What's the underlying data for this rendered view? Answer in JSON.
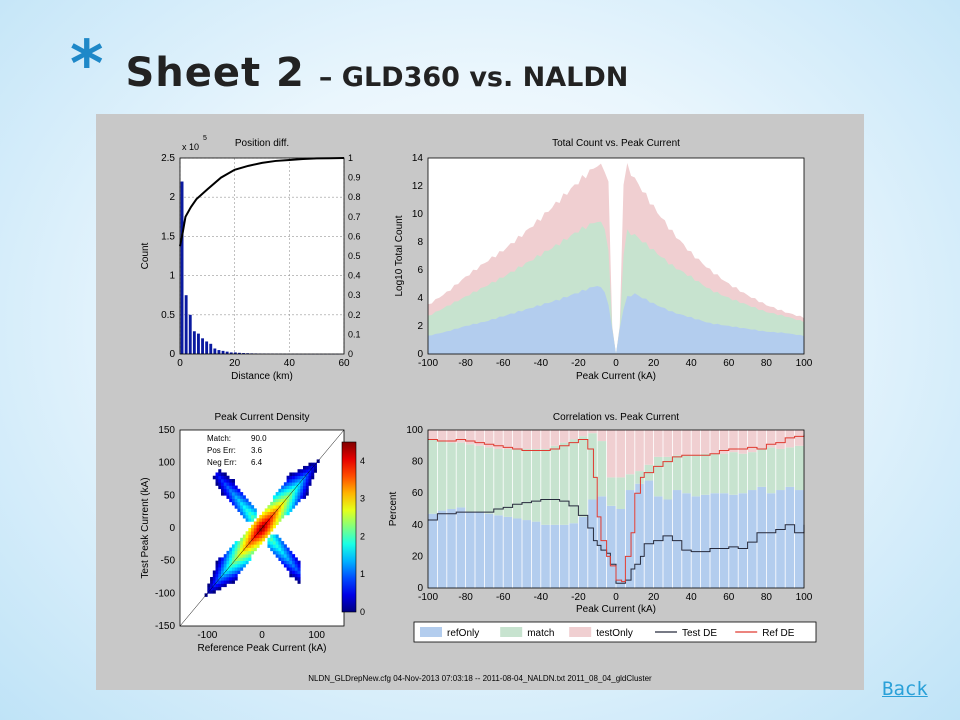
{
  "slide": {
    "bullet": "*",
    "title_main": "Sheet 2",
    "title_sub": "– GLD360 vs. NALDN",
    "back_link": "Back",
    "footer": "NLDN_GLDrepNew.cfg       04-Nov-2013 07:03:18  --  2011-08-04_NALDN.txt       2011_08_04_gldCluster"
  },
  "colors": {
    "bar_blue": "#0a1aa0",
    "cdf_line": "#000000",
    "refOnly": "#b3cdee",
    "match": "#c7e3cf",
    "testOnly": "#f0cfd1",
    "test_de": "#262a3c",
    "ref_de": "#e03a30"
  },
  "chart_data": [
    {
      "id": "position_diff",
      "type": "bar",
      "title": "Position diff.",
      "xlabel": "Distance (km)",
      "ylabel": "Count",
      "y_multiplier_label": "x 10",
      "y_multiplier_exp": "5",
      "xlim": [
        0,
        60
      ],
      "ylim": [
        0,
        2.5
      ],
      "y2lim": [
        0,
        1
      ],
      "xticks": [
        0,
        20,
        40,
        60
      ],
      "yticks": [
        0,
        0.5,
        1,
        1.5,
        2,
        2.5
      ],
      "y2ticks": [
        0,
        0.1,
        0.2,
        0.3,
        0.4,
        0.5,
        0.6,
        0.7,
        0.8,
        0.9,
        1
      ],
      "grid": true,
      "bars": {
        "x": [
          0.75,
          2.25,
          3.75,
          5.25,
          6.75,
          8.25,
          9.75,
          11.25,
          12.75,
          14.25,
          15.75,
          17.25,
          18.75,
          20.25,
          21.75,
          23.25,
          24.75,
          26.25,
          27.75,
          29.25,
          30.75,
          32.25,
          33.75,
          35.25,
          36.75,
          38.25,
          39.75,
          41.25,
          42.75,
          44.25,
          45.75,
          47.25,
          48.75,
          50.25,
          51.75,
          53.25,
          54.75,
          56.25,
          57.75
        ],
        "values": [
          2.2,
          0.75,
          0.5,
          0.29,
          0.26,
          0.2,
          0.16,
          0.13,
          0.07,
          0.05,
          0.04,
          0.03,
          0.02,
          0.02,
          0.015,
          0.012,
          0.01,
          0.008,
          0.007,
          0.006,
          0.005,
          0.004,
          0.004,
          0.003,
          0.003,
          0.002,
          0.002,
          0.002,
          0.002,
          0.001,
          0.001,
          0.001,
          0.001,
          0.001,
          0.001,
          0.001,
          0.001,
          0.001,
          0.001
        ]
      },
      "cdf": {
        "x": [
          0,
          1,
          2,
          4,
          6,
          10,
          15,
          20,
          25,
          30,
          35,
          40,
          45,
          50,
          55,
          60
        ],
        "y": [
          0.55,
          0.62,
          0.7,
          0.75,
          0.79,
          0.84,
          0.9,
          0.94,
          0.96,
          0.975,
          0.985,
          0.99,
          0.995,
          0.998,
          0.999,
          1.0
        ]
      }
    },
    {
      "id": "total_count",
      "type": "area",
      "title": "Total Count vs. Peak Current",
      "xlabel": "Peak Current (kA)",
      "ylabel": "Log10 Total Count",
      "xlim": [
        -100,
        100
      ],
      "ylim": [
        0,
        14
      ],
      "xticks": [
        -100,
        -80,
        -60,
        -40,
        -20,
        0,
        20,
        40,
        60,
        80,
        100
      ],
      "yticks": [
        0,
        2,
        4,
        6,
        8,
        10,
        12,
        14
      ],
      "grid": false,
      "x": [
        -100,
        -90,
        -80,
        -70,
        -60,
        -50,
        -40,
        -30,
        -20,
        -10,
        -5,
        -3,
        -2,
        0,
        2,
        3,
        5,
        10,
        20,
        30,
        40,
        50,
        60,
        70,
        80,
        90,
        100
      ],
      "series": [
        {
          "name": "refOnly",
          "values": [
            1.3,
            1.6,
            2.0,
            2.3,
            2.7,
            3.1,
            3.5,
            3.9,
            4.4,
            4.9,
            4.4,
            2.5,
            1.8,
            0,
            1.8,
            2.5,
            4.0,
            4.3,
            3.6,
            3.0,
            2.6,
            2.2,
            2.0,
            1.8,
            1.6,
            1.5,
            1.3
          ]
        },
        {
          "name": "match",
          "values": [
            2.7,
            3.4,
            4.1,
            4.8,
            5.5,
            6.3,
            7.1,
            7.9,
            8.8,
            9.5,
            9.0,
            5.5,
            1.9,
            0,
            1.9,
            5.5,
            8.8,
            8.5,
            7.4,
            6.3,
            5.5,
            4.6,
            4.0,
            3.5,
            3.0,
            2.7,
            2.3
          ]
        },
        {
          "name": "testOnly",
          "values": [
            3.5,
            4.4,
            5.5,
            6.5,
            7.4,
            8.5,
            9.7,
            11.0,
            12.3,
            13.5,
            13.2,
            11.0,
            2.0,
            0,
            2.0,
            11.0,
            13.6,
            12.5,
            10.5,
            8.7,
            7.2,
            6.0,
            5.0,
            4.2,
            3.5,
            3.0,
            2.6
          ]
        }
      ]
    },
    {
      "id": "peak_current_density",
      "type": "heatmap",
      "title": "Peak Current Density",
      "xlabel": "Reference Peak Current (kA)",
      "ylabel": "Test Peak Current (kA)",
      "xlim": [
        -150,
        150
      ],
      "ylim": [
        -150,
        150
      ],
      "xticks": [
        -100,
        0,
        100
      ],
      "yticks": [
        -150,
        -100,
        -50,
        0,
        50,
        100,
        150
      ],
      "colorbar_ticks": [
        0,
        1,
        2,
        3,
        4
      ],
      "colorbar_range": [
        0,
        4.5
      ],
      "stats": [
        {
          "label": "Match:",
          "value": "90.0"
        },
        {
          "label": "Pos Err:",
          "value": "3.6"
        },
        {
          "label": "Neg Err:",
          "value": "6.4"
        }
      ]
    },
    {
      "id": "correlation",
      "type": "bar",
      "title": "Correlation vs. Peak Current",
      "xlabel": "Peak Current (kA)",
      "ylabel": "Percent",
      "xlim": [
        -100,
        100
      ],
      "ylim": [
        0,
        100
      ],
      "xticks": [
        -100,
        -80,
        -60,
        -40,
        -20,
        0,
        20,
        40,
        60,
        80,
        100
      ],
      "yticks": [
        0,
        20,
        40,
        60,
        80,
        100
      ],
      "legend_position": "bottom",
      "x": [
        -97.5,
        -92.5,
        -87.5,
        -82.5,
        -77.5,
        -72.5,
        -67.5,
        -62.5,
        -57.5,
        -52.5,
        -47.5,
        -42.5,
        -37.5,
        -32.5,
        -27.5,
        -22.5,
        -17.5,
        -12.5,
        -7.5,
        -2.5,
        2.5,
        7.5,
        12.5,
        17.5,
        22.5,
        27.5,
        32.5,
        37.5,
        42.5,
        47.5,
        52.5,
        57.5,
        62.5,
        67.5,
        72.5,
        77.5,
        82.5,
        87.5,
        92.5,
        97.5
      ],
      "series": [
        {
          "name": "refOnly",
          "values": [
            47,
            49,
            50,
            51,
            48,
            48,
            47,
            46,
            45,
            44,
            43,
            42,
            40,
            40,
            40,
            41,
            45,
            56,
            58,
            52,
            50,
            62,
            66,
            68,
            58,
            56,
            62,
            60,
            58,
            59,
            60,
            60,
            59,
            60,
            62,
            64,
            60,
            62,
            64,
            62
          ]
        },
        {
          "name": "match",
          "values": [
            47,
            44,
            42,
            41,
            43,
            42,
            42,
            42,
            43,
            44,
            45,
            46,
            48,
            50,
            52,
            53,
            51,
            42,
            35,
            18,
            20,
            10,
            8,
            10,
            25,
            27,
            22,
            24,
            26,
            26,
            25,
            25,
            27,
            25,
            24,
            24,
            29,
            26,
            25,
            28
          ]
        },
        {
          "name": "testOnly",
          "values": [
            6,
            7,
            8,
            8,
            9,
            10,
            11,
            12,
            12,
            12,
            12,
            12,
            12,
            10,
            8,
            6,
            4,
            2,
            7,
            30,
            30,
            28,
            26,
            22,
            17,
            17,
            16,
            16,
            16,
            15,
            15,
            15,
            14,
            15,
            14,
            12,
            11,
            12,
            11,
            10
          ]
        }
      ],
      "lines": [
        {
          "name": "Test DE",
          "x": [
            -100,
            -95,
            -90,
            -85,
            -80,
            -75,
            -70,
            -65,
            -60,
            -55,
            -50,
            -45,
            -40,
            -35,
            -30,
            -25,
            -20,
            -15,
            -12,
            -10,
            -8,
            -5,
            -3,
            0,
            3,
            5,
            8,
            10,
            13,
            15,
            20,
            25,
            30,
            35,
            40,
            45,
            50,
            55,
            60,
            65,
            70,
            75,
            80,
            85,
            90,
            95,
            100
          ],
          "y": [
            43,
            47,
            47,
            48,
            48,
            48,
            48,
            50,
            51,
            53,
            54,
            55,
            56,
            56,
            55,
            52,
            46,
            38,
            30,
            27,
            24,
            22,
            15,
            3,
            3,
            5,
            12,
            15,
            20,
            28,
            30,
            33,
            30,
            24,
            23,
            23,
            25,
            25,
            26,
            25,
            29,
            35,
            35,
            37,
            40,
            35,
            40
          ]
        },
        {
          "name": "Ref DE",
          "x": [
            -100,
            -95,
            -90,
            -85,
            -80,
            -75,
            -70,
            -65,
            -60,
            -55,
            -50,
            -45,
            -40,
            -35,
            -30,
            -25,
            -20,
            -15,
            -12,
            -10,
            -8,
            -5,
            -3,
            0,
            3,
            5,
            8,
            10,
            13,
            15,
            20,
            25,
            30,
            35,
            40,
            45,
            50,
            55,
            60,
            65,
            70,
            75,
            80,
            85,
            90,
            95,
            100
          ],
          "y": [
            94,
            93,
            93,
            94,
            93,
            92,
            91,
            90,
            89,
            88,
            87,
            87,
            87,
            88,
            90,
            92,
            94,
            88,
            70,
            45,
            30,
            20,
            14,
            5,
            4,
            20,
            35,
            60,
            70,
            73,
            77,
            80,
            83,
            84,
            84,
            84,
            85,
            87,
            88,
            88,
            89,
            88,
            91,
            92,
            95,
            96,
            97
          ]
        }
      ]
    }
  ],
  "legend": {
    "items": [
      {
        "label": "refOnly",
        "kind": "patch",
        "color": "#b3cdee"
      },
      {
        "label": "match",
        "kind": "patch",
        "color": "#c7e3cf"
      },
      {
        "label": "testOnly",
        "kind": "patch",
        "color": "#f0cfd1"
      },
      {
        "label": "Test DE",
        "kind": "line",
        "color": "#262a3c"
      },
      {
        "label": "Ref DE",
        "kind": "line",
        "color": "#e03a30"
      }
    ]
  }
}
